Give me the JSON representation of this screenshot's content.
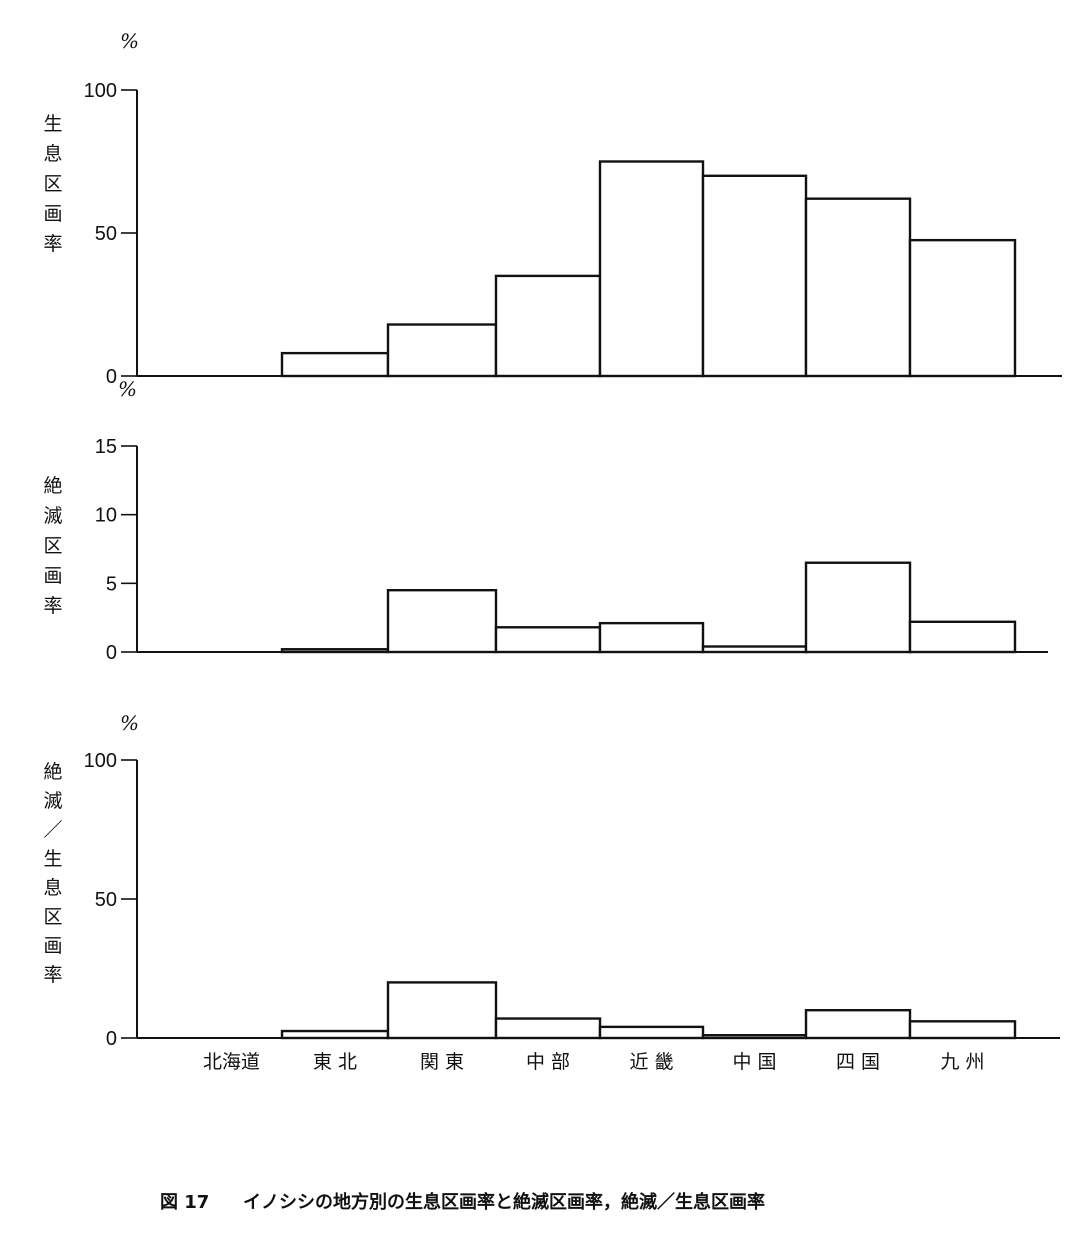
{
  "caption": {
    "number": "図 17",
    "text": "イノシシの地方別の生息区画率と絶滅区画率，絶滅／生息区画率"
  },
  "chart_data": [
    {
      "type": "bar",
      "ylabel": "生息区画率",
      "unit": "%",
      "ylim": [
        0,
        100
      ],
      "yticks": [
        "100",
        "50",
        "0"
      ],
      "categories": [
        "北海道",
        "東北",
        "関東",
        "中部",
        "近畿",
        "中国",
        "四国",
        "九州"
      ],
      "values": [
        0,
        8,
        18,
        35,
        75,
        70,
        62,
        47.5
      ],
      "grid": false
    },
    {
      "type": "bar",
      "ylabel": "絶滅区画率",
      "unit": "%",
      "ylim": [
        0,
        15
      ],
      "yticks": [
        "15",
        "10",
        "5",
        "0"
      ],
      "categories": [
        "北海道",
        "東北",
        "関東",
        "中部",
        "近畿",
        "中国",
        "四国",
        "九州"
      ],
      "values": [
        0,
        0.2,
        4.5,
        1.8,
        2.1,
        0.4,
        6.5,
        2.2
      ],
      "grid": false
    },
    {
      "type": "bar",
      "ylabel": "絶滅／生息区画率",
      "unit": "%",
      "ylim": [
        0,
        100
      ],
      "yticks": [
        "100",
        "50",
        "0"
      ],
      "categories": [
        "北海道",
        "東北",
        "関東",
        "中部",
        "近畿",
        "中国",
        "四国",
        "九州"
      ],
      "category_labels": [
        "北海道",
        "東 北",
        "関 東",
        "中 部",
        "近 畿",
        "中 国",
        "四 国",
        "九 州"
      ],
      "values": [
        0,
        2.5,
        20,
        7,
        4,
        1,
        10,
        6
      ],
      "grid": false
    }
  ]
}
